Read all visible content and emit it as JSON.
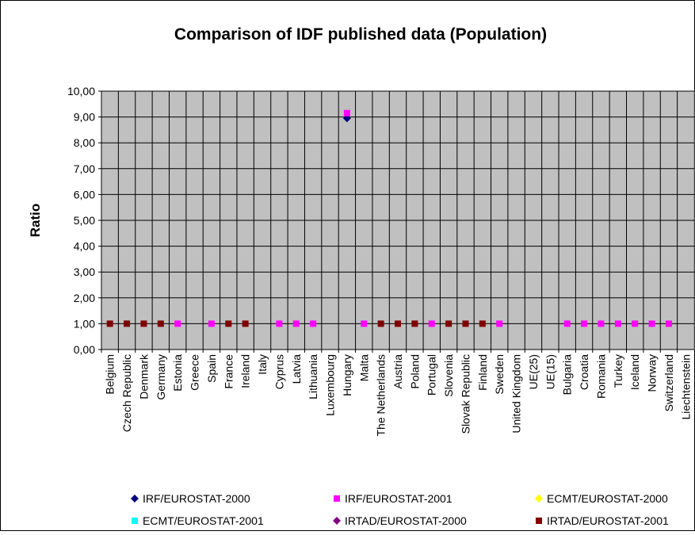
{
  "chart_data": {
    "type": "line",
    "show_lines": false,
    "title": "Comparison of IDF published data (Population)",
    "y_label": "Ratio",
    "grid": true,
    "legend_position": "bottom",
    "categories": [
      "Belgium",
      "Czech Republic",
      "Denmark",
      "Germany",
      "Estonia",
      "Greece",
      "Spain",
      "France",
      "Ireland",
      "Italy",
      "Cyprus",
      "Latvia",
      "Lithuania",
      "Luxembourg",
      "Hungary",
      "Malta",
      "The Netherlands",
      "Austria",
      "Poland",
      "Portugal",
      "Slovenia",
      "Slovak Republic",
      "Finland",
      "Sweden",
      "United Kingdom",
      "UE(25)",
      "UE(15)",
      "Bulgaria",
      "Croatia",
      "Romania",
      "Turkey",
      "Iceland",
      "Norway",
      "Switzerland",
      "Liechtenstein"
    ],
    "ylim": [
      0,
      10
    ],
    "yticks": [
      {
        "value": 0,
        "label": "0,00"
      },
      {
        "value": 1,
        "label": "1,00"
      },
      {
        "value": 2,
        "label": "2,00"
      },
      {
        "value": 3,
        "label": "3,00"
      },
      {
        "value": 4,
        "label": "4,00"
      },
      {
        "value": 5,
        "label": "5,00"
      },
      {
        "value": 6,
        "label": "6,00"
      },
      {
        "value": 7,
        "label": "7,00"
      },
      {
        "value": 8,
        "label": "8,00"
      },
      {
        "value": 9,
        "label": "9,00"
      },
      {
        "value": 10,
        "label": "10,00"
      }
    ],
    "series": [
      {
        "name": "IRF/EUROSTAT-2000",
        "color": "#000080",
        "marker": "diamond",
        "values": [
          null,
          null,
          null,
          null,
          null,
          null,
          null,
          null,
          null,
          null,
          null,
          null,
          null,
          null,
          8.95,
          null,
          null,
          null,
          null,
          null,
          null,
          null,
          null,
          null,
          null,
          null,
          null,
          null,
          null,
          null,
          null,
          null,
          null,
          null,
          null
        ]
      },
      {
        "name": "IRF/EUROSTAT-2001",
        "color": "#ff00ff",
        "marker": "square",
        "values": [
          null,
          null,
          null,
          null,
          1,
          null,
          1,
          null,
          null,
          null,
          1,
          1,
          1,
          null,
          9.15,
          1,
          null,
          null,
          null,
          1,
          null,
          null,
          null,
          1,
          null,
          null,
          null,
          1,
          1,
          1,
          1,
          1,
          1,
          1,
          null
        ]
      },
      {
        "name": "ECMT/EUROSTAT-2000",
        "color": "#ffff00",
        "marker": "diamond",
        "values": [
          null,
          null,
          null,
          null,
          null,
          null,
          null,
          null,
          null,
          null,
          null,
          null,
          null,
          null,
          null,
          null,
          null,
          null,
          null,
          null,
          null,
          null,
          null,
          null,
          null,
          null,
          null,
          null,
          null,
          null,
          null,
          null,
          null,
          null,
          null
        ]
      },
      {
        "name": "ECMT/EUROSTAT-2001",
        "color": "#00ffff",
        "marker": "square",
        "values": [
          null,
          null,
          null,
          null,
          null,
          null,
          null,
          null,
          null,
          null,
          null,
          null,
          null,
          null,
          null,
          null,
          null,
          null,
          null,
          null,
          null,
          null,
          null,
          null,
          null,
          null,
          null,
          null,
          null,
          null,
          null,
          null,
          null,
          null,
          null
        ]
      },
      {
        "name": "IRTAD/EUROSTAT-2000",
        "color": "#800080",
        "marker": "diamond",
        "values": [
          null,
          null,
          null,
          null,
          null,
          null,
          null,
          null,
          null,
          null,
          null,
          null,
          null,
          null,
          null,
          null,
          null,
          null,
          null,
          null,
          null,
          null,
          null,
          null,
          null,
          null,
          null,
          null,
          null,
          null,
          null,
          null,
          null,
          null,
          null
        ]
      },
      {
        "name": "IRTAD/EUROSTAT-2001",
        "color": "#800000",
        "marker": "square",
        "values": [
          1,
          1,
          1,
          1,
          null,
          null,
          null,
          1,
          1,
          null,
          null,
          null,
          null,
          null,
          null,
          null,
          1,
          1,
          1,
          null,
          1,
          1,
          1,
          null,
          null,
          null,
          null,
          null,
          null,
          null,
          null,
          null,
          null,
          null,
          null
        ]
      }
    ]
  }
}
